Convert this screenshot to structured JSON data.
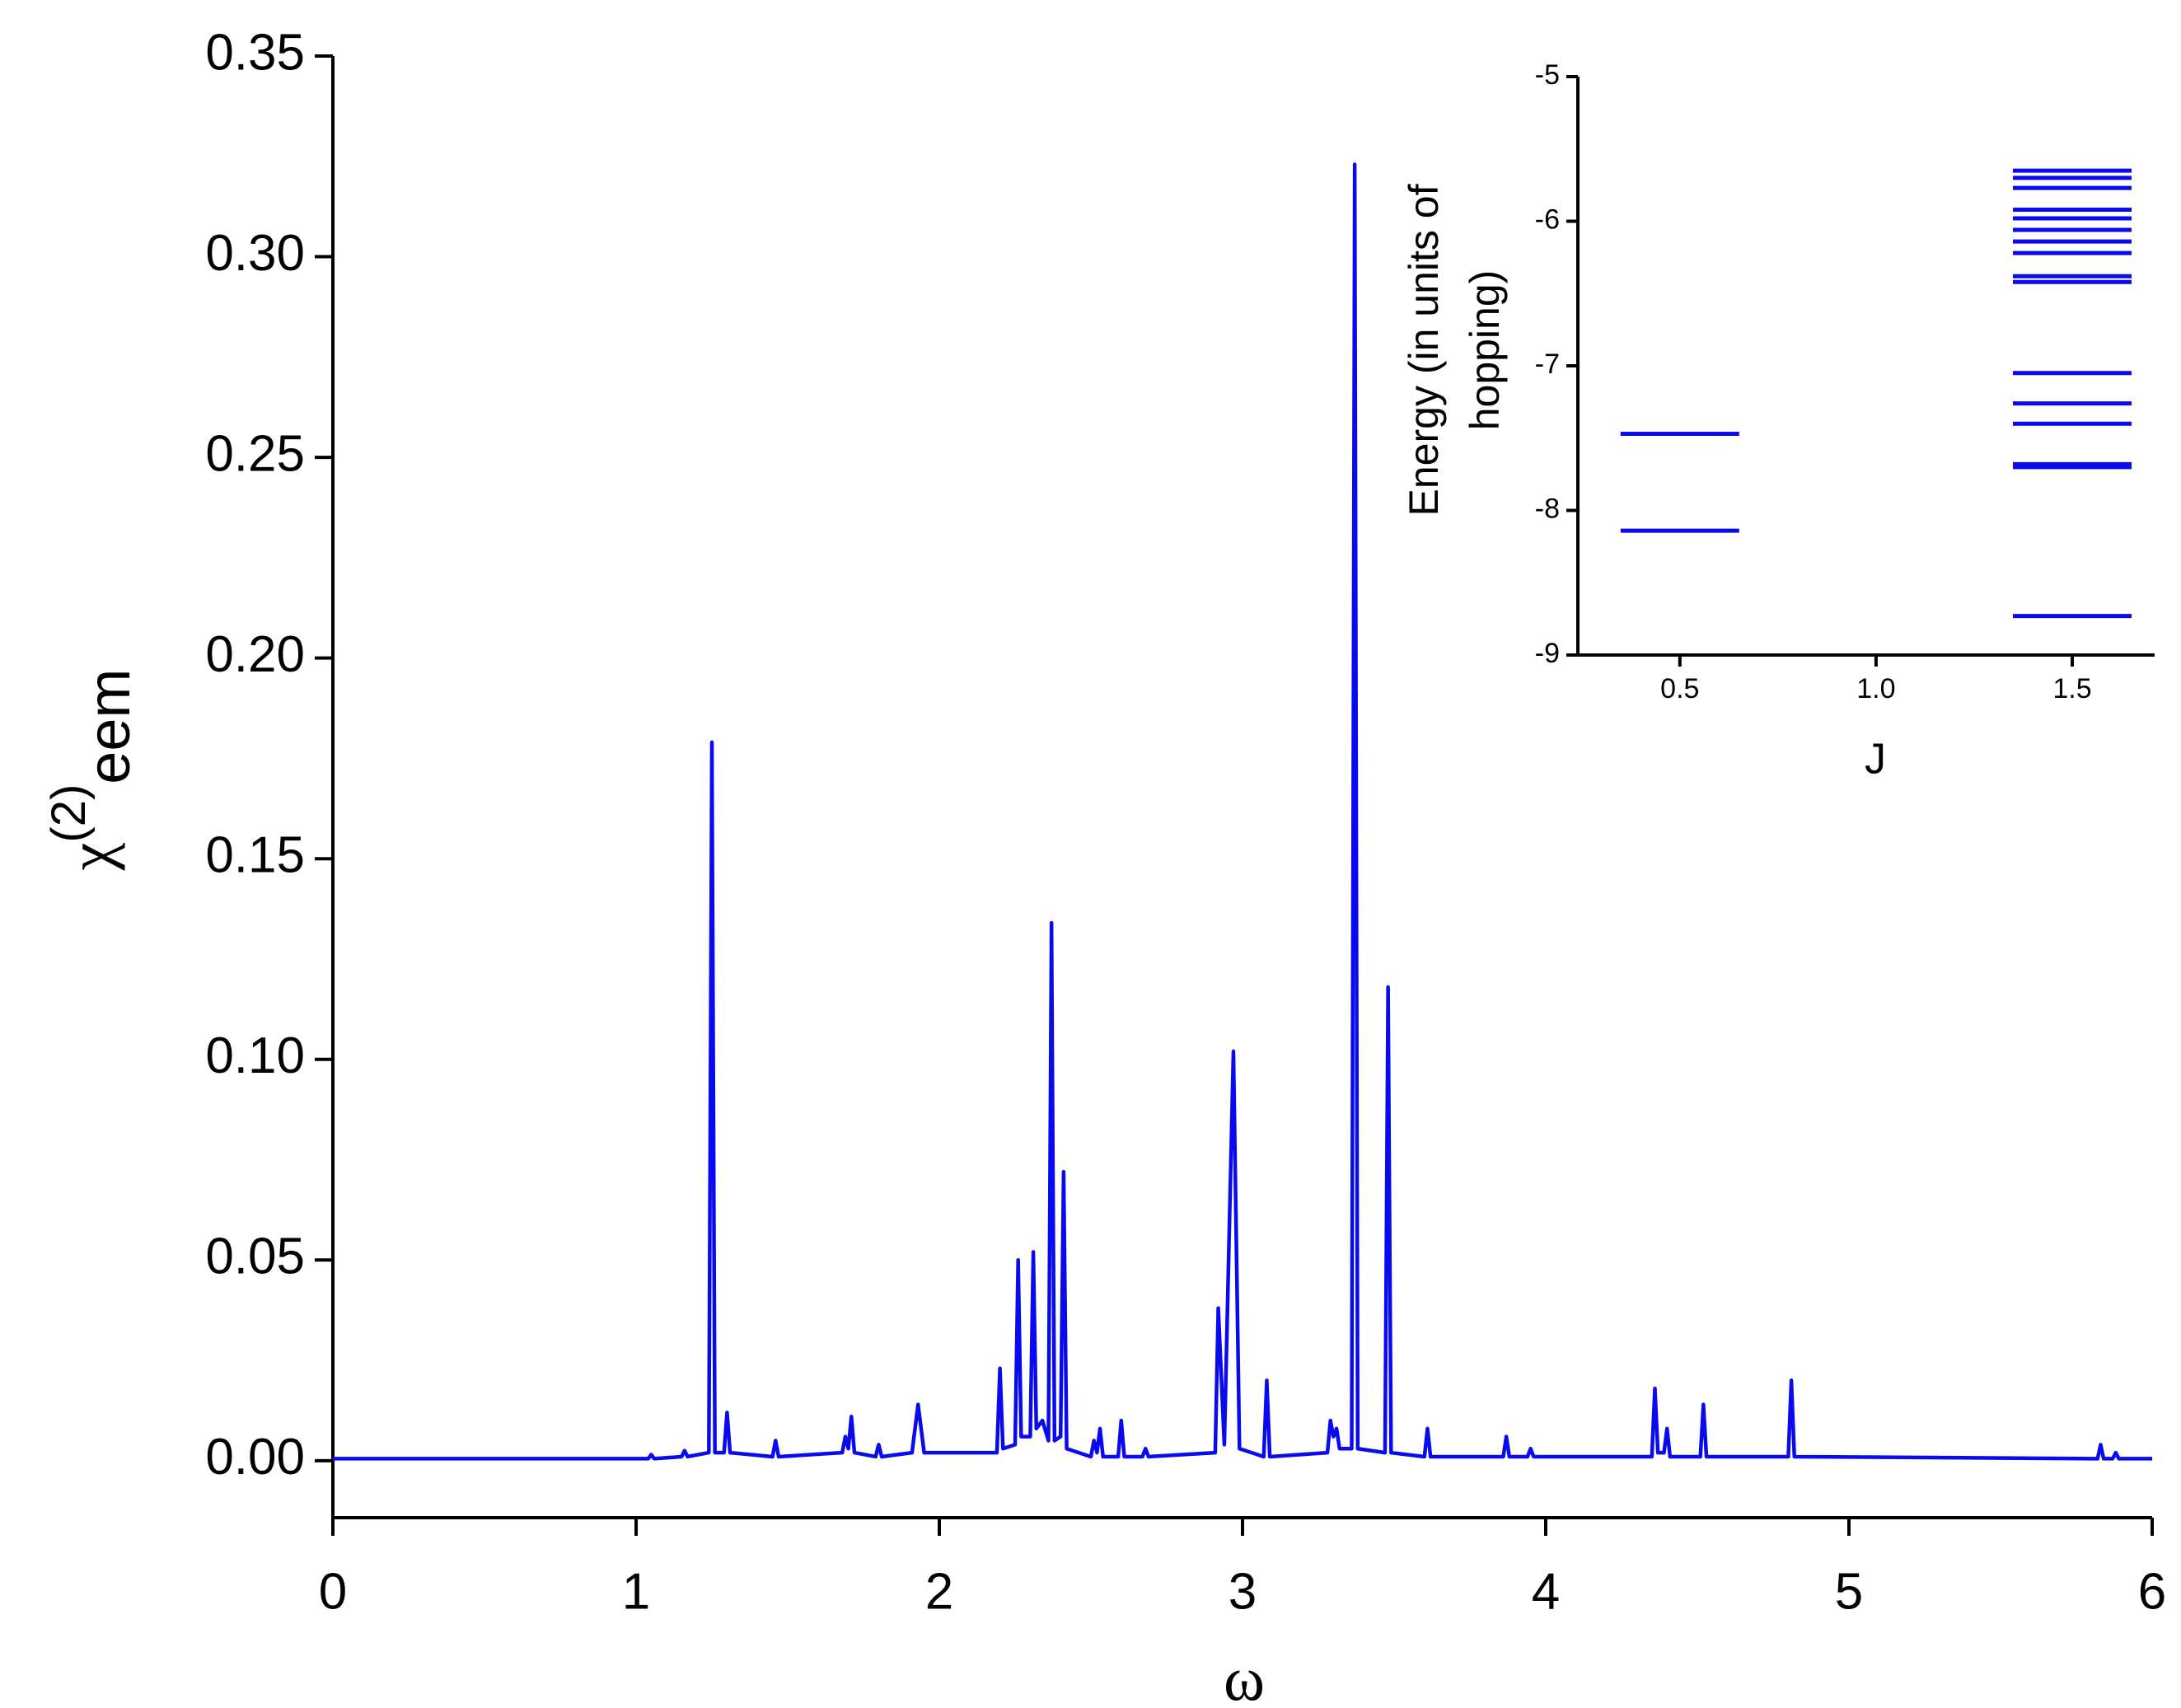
{
  "chart_data": [
    {
      "type": "line",
      "x_label": "ω",
      "y_label": "χ",
      "y_label_sup": "(2)",
      "y_label_sub": "eem",
      "color": "#0a0aee",
      "x": [
        0,
        1.04,
        1.05,
        1.06,
        1.15,
        1.16,
        1.17,
        1.24,
        1.25,
        1.26,
        1.29,
        1.3,
        1.31,
        1.45,
        1.46,
        1.47,
        1.68,
        1.69,
        1.7,
        1.71,
        1.72,
        1.79,
        1.8,
        1.81,
        1.91,
        1.93,
        1.95,
        2.19,
        2.2,
        2.21,
        2.25,
        2.26,
        2.27,
        2.3,
        2.31,
        2.32,
        2.34,
        2.36,
        2.37,
        2.38,
        2.4,
        2.41,
        2.42,
        2.5,
        2.51,
        2.52,
        2.53,
        2.54,
        2.59,
        2.6,
        2.61,
        2.67,
        2.68,
        2.69,
        2.91,
        2.92,
        2.94,
        2.97,
        2.99,
        3.07,
        3.08,
        3.09,
        3.28,
        3.29,
        3.3,
        3.31,
        3.32,
        3.36,
        3.37,
        3.38,
        3.47,
        3.48,
        3.49,
        3.6,
        3.61,
        3.62,
        3.86,
        3.87,
        3.88,
        3.94,
        3.95,
        3.96,
        4.35,
        4.36,
        4.37,
        4.39,
        4.4,
        4.41,
        4.51,
        4.52,
        4.53,
        4.8,
        4.81,
        4.82,
        5.82,
        5.83,
        5.84,
        5.87,
        5.88,
        5.89,
        6.0
      ],
      "values": [
        0.0005,
        0.0005,
        0.0015,
        0.0005,
        0.001,
        0.0025,
        0.001,
        0.002,
        0.179,
        0.002,
        0.002,
        0.012,
        0.002,
        0.001,
        0.005,
        0.001,
        0.002,
        0.006,
        0.003,
        0.011,
        0.002,
        0.001,
        0.004,
        0.001,
        0.002,
        0.014,
        0.002,
        0.002,
        0.023,
        0.003,
        0.004,
        0.05,
        0.006,
        0.006,
        0.052,
        0.008,
        0.01,
        0.005,
        0.134,
        0.005,
        0.006,
        0.072,
        0.003,
        0.001,
        0.005,
        0.002,
        0.008,
        0.001,
        0.001,
        0.01,
        0.001,
        0.001,
        0.003,
        0.001,
        0.002,
        0.038,
        0.004,
        0.102,
        0.003,
        0.001,
        0.02,
        0.001,
        0.002,
        0.01,
        0.006,
        0.008,
        0.003,
        0.003,
        0.323,
        0.003,
        0.002,
        0.118,
        0.002,
        0.001,
        0.008,
        0.001,
        0.001,
        0.006,
        0.001,
        0.001,
        0.003,
        0.001,
        0.001,
        0.018,
        0.002,
        0.002,
        0.008,
        0.001,
        0.001,
        0.014,
        0.001,
        0.001,
        0.02,
        0.001,
        0.0005,
        0.004,
        0.0005,
        0.0005,
        0.002,
        0.0005,
        0.0005
      ],
      "xlim": [
        0,
        6
      ],
      "xticks": [
        0,
        1,
        2,
        3,
        4,
        5,
        6
      ],
      "ylim": [
        -0.0142,
        0.35
      ],
      "yticks": [
        {
          "value": 0,
          "label": "0.00"
        },
        {
          "value": 0.05,
          "label": "0.05"
        },
        {
          "value": 0.1,
          "label": "0.10"
        },
        {
          "value": 0.15,
          "label": "0.15"
        },
        {
          "value": 0.2,
          "label": "0.20"
        },
        {
          "value": 0.25,
          "label": "0.25"
        },
        {
          "value": 0.3,
          "label": "0.30"
        },
        {
          "value": 0.35,
          "label": "0.35"
        }
      ]
    },
    {
      "type": "levels",
      "x_label": "J",
      "y_label": [
        "Energy (in units of",
        "hopping)"
      ],
      "color": "#0a0aee",
      "x": [
        0.5,
        1.5
      ],
      "values": [
        [
          -7.47,
          -8.14
        ],
        [
          -5.65,
          -5.7,
          -5.77,
          -5.92,
          -5.98,
          -6.06,
          -6.14,
          -6.22,
          -6.38,
          -6.42,
          -7.05,
          -7.26,
          -7.4,
          -7.68,
          -7.7,
          -8.73
        ]
      ],
      "xlim": [
        0.24,
        1.71
      ],
      "xticks": [
        0.5,
        {
          "value": 1,
          "label": "1.0"
        },
        1.5
      ],
      "ylim": [
        -9,
        -5
      ],
      "yticks": [
        -5,
        -6,
        -7,
        -8,
        -9
      ]
    }
  ]
}
